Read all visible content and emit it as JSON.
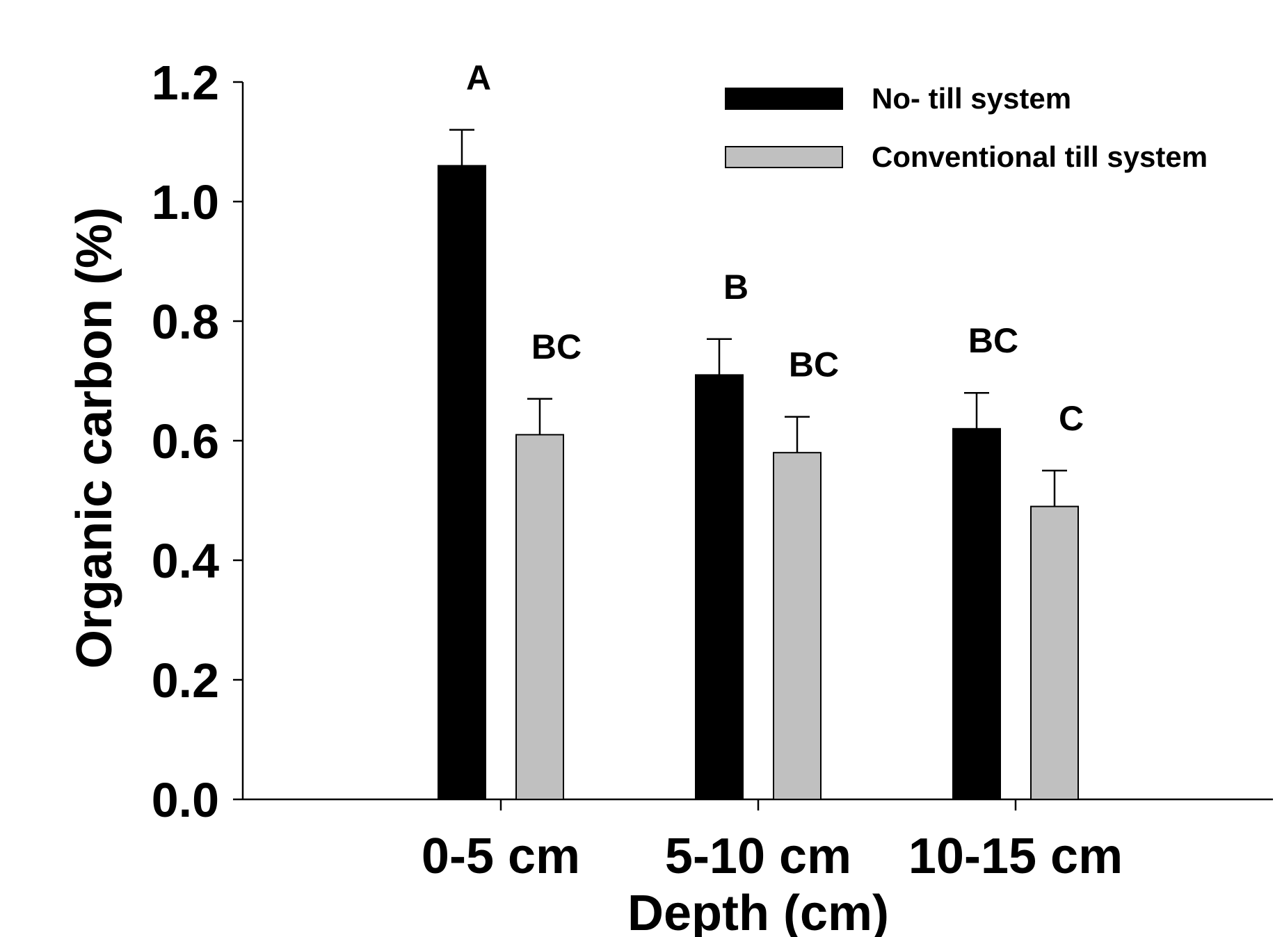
{
  "chart_data": {
    "type": "bar",
    "title": "",
    "xlabel": "Depth (cm)",
    "ylabel": "Organic carbon (%)",
    "categories": [
      "0-5 cm",
      "5-10 cm",
      "10-15 cm"
    ],
    "ylim": [
      0,
      1.2
    ],
    "yticks": [
      "0.0",
      "0.2",
      "0.4",
      "0.6",
      "0.8",
      "1.0",
      "1.2"
    ],
    "grid": false,
    "legend_position": "top-right",
    "series": [
      {
        "name": "No- till system",
        "color": "#000000",
        "values": [
          1.06,
          0.71,
          0.62
        ],
        "errors": [
          0.06,
          0.06,
          0.06
        ],
        "significance": [
          "A",
          "B",
          "BC"
        ]
      },
      {
        "name": "Conventional till system",
        "color": "#c0c0c0",
        "values": [
          0.61,
          0.58,
          0.49
        ],
        "errors": [
          0.06,
          0.06,
          0.06
        ],
        "significance": [
          "BC",
          "BC",
          "C"
        ]
      }
    ]
  }
}
